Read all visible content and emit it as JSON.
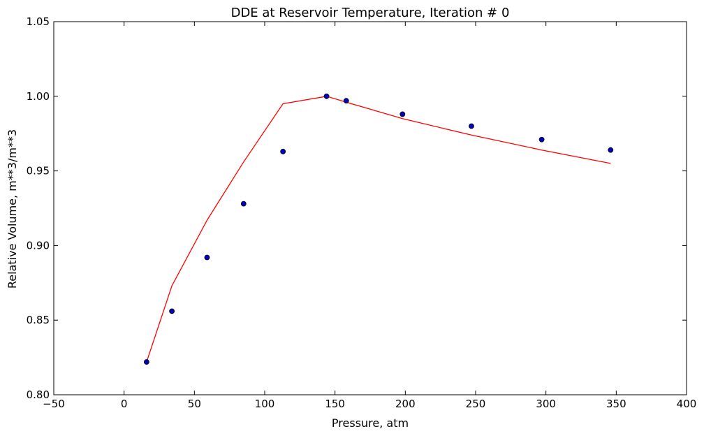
{
  "chart_data": {
    "type": "line+scatter",
    "title": "DDE at Reservoir Temperature, Iteration # 0",
    "xlabel": "Pressure, atm",
    "ylabel": "Relative Volume, m**3/m**3",
    "xlim": [
      -50,
      400
    ],
    "ylim": [
      0.8,
      1.05
    ],
    "xticks": [
      -50,
      0,
      50,
      100,
      150,
      200,
      250,
      300,
      350,
      400
    ],
    "xtick_labels": [
      "−50",
      "0",
      "50",
      "100",
      "150",
      "200",
      "250",
      "300",
      "350",
      "400"
    ],
    "yticks": [
      0.8,
      0.85,
      0.9,
      0.95,
      1.0,
      1.05
    ],
    "ytick_labels": [
      "0.80",
      "0.85",
      "0.90",
      "0.95",
      "1.00",
      "1.05"
    ],
    "grid": false,
    "legend": "none",
    "series": [
      {
        "type": "line",
        "color": "#ff0000",
        "x": [
          16,
          34,
          59,
          85,
          113,
          144,
          158,
          198,
          247,
          297,
          346
        ],
        "y": [
          0.822,
          0.873,
          0.917,
          0.956,
          0.995,
          1.0,
          0.996,
          0.985,
          0.974,
          0.964,
          0.955
        ]
      },
      {
        "type": "scatter",
        "color": "#0000bf",
        "x": [
          16,
          34,
          59,
          85,
          113,
          144,
          158,
          198,
          247,
          297,
          346
        ],
        "y": [
          0.822,
          0.856,
          0.892,
          0.928,
          0.963,
          1.0,
          0.997,
          0.988,
          0.98,
          0.971,
          0.964
        ]
      }
    ]
  }
}
